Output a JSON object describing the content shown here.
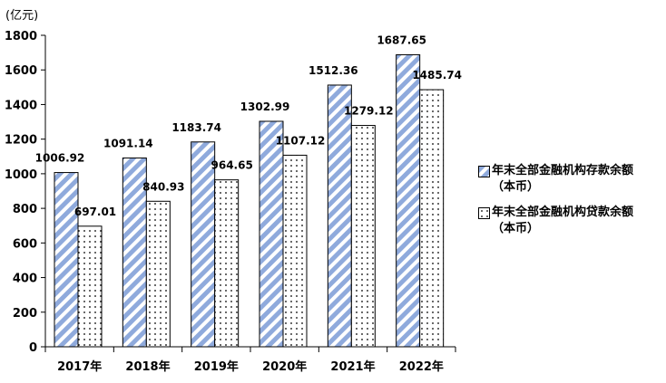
{
  "unit_label": "(亿元)",
  "chart_data": {
    "type": "bar",
    "categories": [
      "2017年",
      "2018年",
      "2019年",
      "2020年",
      "2021年",
      "2022年"
    ],
    "series": [
      {
        "name": "年末全部金融机构存款余额（本币）",
        "values": [
          1006.92,
          1091.14,
          1183.74,
          1302.99,
          1512.36,
          1687.65
        ],
        "labels": [
          "1006.92",
          "1091.14",
          "1183.74",
          "1302.99",
          "1512.36",
          "1687.65"
        ],
        "pattern": "diagonal-stripes",
        "color": "#8FAADC"
      },
      {
        "name": "年末全部金融机构贷款余额（本币）",
        "values": [
          697.01,
          840.93,
          964.65,
          1107.12,
          1279.12,
          1485.74
        ],
        "labels": [
          "697.01",
          "840.93",
          "964.65",
          "1107.12",
          "1279.12",
          "1485.74"
        ],
        "pattern": "dots",
        "color": "#000000"
      }
    ],
    "yticks": [
      "0",
      "200",
      "400",
      "600",
      "800",
      "1000",
      "1200",
      "1400",
      "1600",
      "1800"
    ],
    "ylim": [
      0,
      1800
    ],
    "legend_position": "right",
    "grid": false
  },
  "legend": {
    "deposit_line1": "年末全部金融机构存款余额",
    "deposit_line2": "（本币）",
    "loan_line1": "年末全部金融机构贷款余额",
    "loan_line2": "（本币）"
  }
}
